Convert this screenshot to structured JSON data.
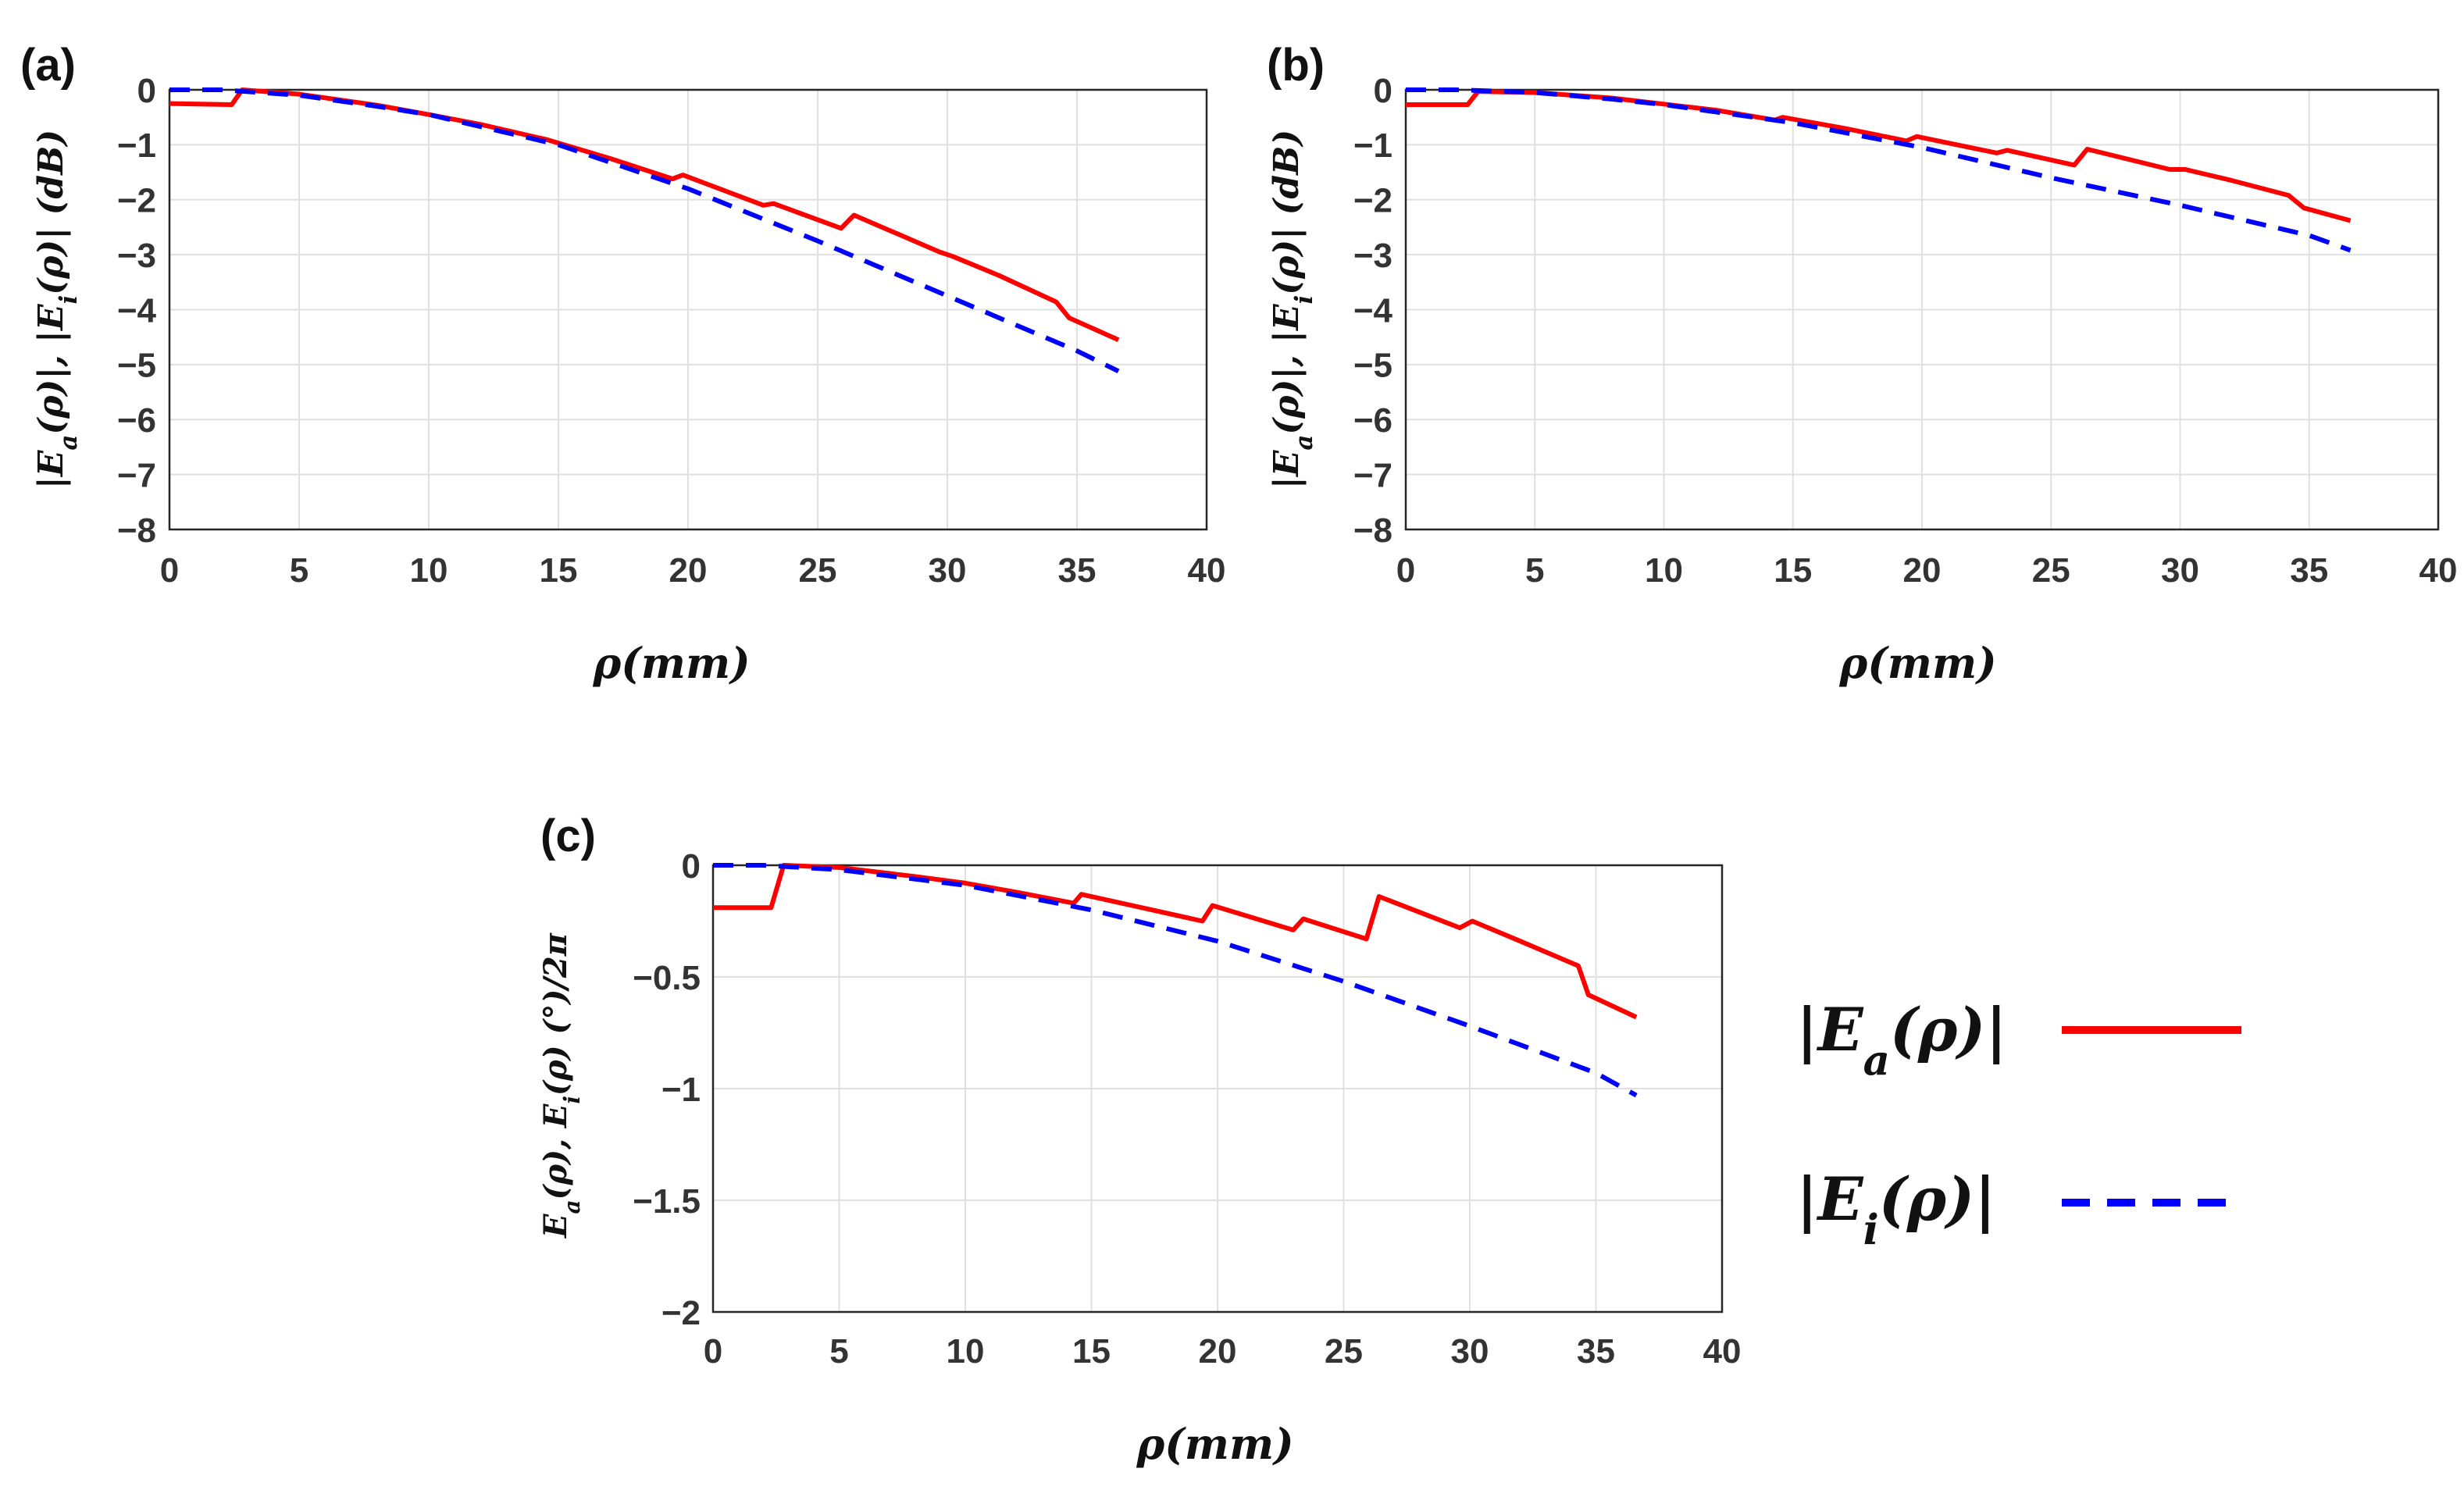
{
  "chart_data": [
    {
      "type": "line",
      "panel_label": "(a)",
      "xlabel": "ρ(mm)",
      "ylabel": "|E_a(ρ)|, |E_i(ρ)|  (dB)",
      "xlim": [
        0,
        40
      ],
      "ylim": [
        -8,
        0
      ],
      "xticks": [
        "0",
        "5",
        "10",
        "15",
        "20",
        "25",
        "30",
        "35",
        "40"
      ],
      "yticks": [
        "0",
        "−1",
        "−2",
        "−3",
        "−4",
        "−5",
        "−6",
        "−7",
        "−8"
      ],
      "grid": true,
      "series": [
        {
          "name": "|E_a(ρ)|",
          "color": "#ff0000",
          "style": "solid",
          "points": [
            [
              0,
              -0.25
            ],
            [
              2.4,
              -0.27
            ],
            [
              2.8,
              0.0
            ],
            [
              5,
              -0.08
            ],
            [
              8,
              -0.28
            ],
            [
              10,
              -0.45
            ],
            [
              12,
              -0.63
            ],
            [
              14.2,
              -0.87
            ],
            [
              14.5,
              -0.9
            ],
            [
              17,
              -1.25
            ],
            [
              19.4,
              -1.62
            ],
            [
              19.8,
              -1.55
            ],
            [
              22.9,
              -2.1
            ],
            [
              23.3,
              -2.07
            ],
            [
              25.9,
              -2.52
            ],
            [
              26.4,
              -2.28
            ],
            [
              29.7,
              -2.95
            ],
            [
              30.2,
              -3.03
            ],
            [
              32,
              -3.38
            ],
            [
              34.2,
              -3.86
            ],
            [
              34.7,
              -4.15
            ],
            [
              36.6,
              -4.55
            ]
          ]
        },
        {
          "name": "|E_i(ρ)|",
          "color": "#0000ff",
          "style": "dashed",
          "points": [
            [
              0,
              0.0
            ],
            [
              2,
              0.0
            ],
            [
              5,
              -0.1
            ],
            [
              8,
              -0.3
            ],
            [
              10,
              -0.45
            ],
            [
              15,
              -1.0
            ],
            [
              20,
              -1.8
            ],
            [
              25,
              -2.75
            ],
            [
              30,
              -3.75
            ],
            [
              35,
              -4.75
            ],
            [
              36.6,
              -5.12
            ]
          ]
        }
      ]
    },
    {
      "type": "line",
      "panel_label": "(b)",
      "xlabel": "ρ(mm)",
      "ylabel": "|E_a(ρ)|, |E_i(ρ)|  (dB)",
      "xlim": [
        0,
        40
      ],
      "ylim": [
        -8,
        0
      ],
      "xticks": [
        "0",
        "5",
        "10",
        "15",
        "20",
        "25",
        "30",
        "35",
        "40"
      ],
      "yticks": [
        "0",
        "−1",
        "−2",
        "−3",
        "−4",
        "−5",
        "−6",
        "−7",
        "−8"
      ],
      "grid": true,
      "series": [
        {
          "name": "|E_a(ρ)|",
          "color": "#ff0000",
          "style": "solid",
          "points": [
            [
              0,
              -0.27
            ],
            [
              2.4,
              -0.27
            ],
            [
              2.8,
              -0.03
            ],
            [
              5,
              -0.05
            ],
            [
              8,
              -0.15
            ],
            [
              10,
              -0.26
            ],
            [
              12,
              -0.37
            ],
            [
              14.3,
              -0.55
            ],
            [
              14.6,
              -0.5
            ],
            [
              17,
              -0.7
            ],
            [
              19.4,
              -0.93
            ],
            [
              19.8,
              -0.85
            ],
            [
              22.9,
              -1.15
            ],
            [
              23.3,
              -1.1
            ],
            [
              25.9,
              -1.37
            ],
            [
              26.4,
              -1.08
            ],
            [
              29.6,
              -1.45
            ],
            [
              30.2,
              -1.45
            ],
            [
              32,
              -1.65
            ],
            [
              34.2,
              -1.92
            ],
            [
              34.8,
              -2.15
            ],
            [
              36.6,
              -2.38
            ]
          ]
        },
        {
          "name": "|E_i(ρ)|",
          "color": "#0000ff",
          "style": "dashed",
          "points": [
            [
              0,
              0.0
            ],
            [
              2,
              0.0
            ],
            [
              5,
              -0.05
            ],
            [
              8,
              -0.17
            ],
            [
              10,
              -0.27
            ],
            [
              15,
              -0.6
            ],
            [
              20,
              -1.05
            ],
            [
              25,
              -1.6
            ],
            [
              30,
              -2.1
            ],
            [
              35,
              -2.65
            ],
            [
              36.6,
              -2.92
            ]
          ]
        }
      ]
    },
    {
      "type": "line",
      "panel_label": "(c)",
      "xlabel": "ρ(mm)",
      "ylabel": "E_a(ρ), E_i(ρ) (°)/2π",
      "xlim": [
        0,
        40
      ],
      "ylim": [
        -2,
        0
      ],
      "xticks": [
        "0",
        "5",
        "10",
        "15",
        "20",
        "25",
        "30",
        "35",
        "40"
      ],
      "yticks": [
        "0",
        "−0.5",
        "−1",
        "−1.5",
        "−2"
      ],
      "grid": true,
      "series": [
        {
          "name": "E_a(ρ)",
          "color": "#ff0000",
          "style": "solid",
          "points": [
            [
              0,
              -0.19
            ],
            [
              2.3,
              -0.19
            ],
            [
              2.8,
              0.0
            ],
            [
              5,
              -0.01
            ],
            [
              8,
              -0.05
            ],
            [
              10,
              -0.08
            ],
            [
              12,
              -0.12
            ],
            [
              14.3,
              -0.17
            ],
            [
              14.6,
              -0.13
            ],
            [
              17,
              -0.19
            ],
            [
              19.4,
              -0.25
            ],
            [
              19.8,
              -0.18
            ],
            [
              23,
              -0.29
            ],
            [
              23.4,
              -0.24
            ],
            [
              25.9,
              -0.33
            ],
            [
              26.4,
              -0.14
            ],
            [
              29.6,
              -0.28
            ],
            [
              30.1,
              -0.25
            ],
            [
              32,
              -0.34
            ],
            [
              34.3,
              -0.45
            ],
            [
              34.7,
              -0.58
            ],
            [
              36.6,
              -0.68
            ]
          ]
        },
        {
          "name": "E_i(ρ)",
          "color": "#0000ff",
          "style": "dashed",
          "points": [
            [
              0,
              0.0
            ],
            [
              2,
              0.0
            ],
            [
              5,
              -0.02
            ],
            [
              10,
              -0.09
            ],
            [
              15,
              -0.2
            ],
            [
              20,
              -0.34
            ],
            [
              25,
              -0.52
            ],
            [
              30,
              -0.72
            ],
            [
              35,
              -0.93
            ],
            [
              36.6,
              -1.03
            ]
          ]
        }
      ]
    }
  ],
  "legend": {
    "entries": [
      {
        "label": "|E_a(ρ)|",
        "color": "#ff0000",
        "style": "solid"
      },
      {
        "label": "|E_i(ρ)|",
        "color": "#0000ff",
        "style": "dashed"
      }
    ]
  }
}
